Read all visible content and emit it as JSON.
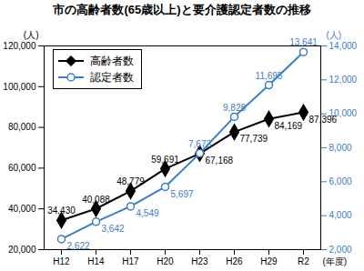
{
  "chart_data": {
    "type": "line",
    "title": "市の高齢者数(65歳以上)と要介護認定者数の推移",
    "categories": [
      "H12",
      "H14",
      "H17",
      "H20",
      "H23",
      "H26",
      "H29",
      "R2"
    ],
    "x_label": "(年度)",
    "y_label": "(人)",
    "y2_label": "(人)",
    "ylim": [
      20000,
      120000
    ],
    "yticks": [
      {
        "value": 20000,
        "label": "20,000"
      },
      {
        "value": 40000,
        "label": "40,000"
      },
      {
        "value": 60000,
        "label": "60,000"
      },
      {
        "value": 80000,
        "label": "80,000"
      },
      {
        "value": 100000,
        "label": "100,000"
      },
      {
        "value": 120000,
        "label": "120,000"
      }
    ],
    "y2lim": [
      2000,
      14000
    ],
    "y2ticks": [
      {
        "value": 2000,
        "label": "2,000"
      },
      {
        "value": 4000,
        "label": "4,000"
      },
      {
        "value": 6000,
        "label": "6,000"
      },
      {
        "value": 8000,
        "label": "8,000"
      },
      {
        "value": 10000,
        "label": "10,000"
      },
      {
        "value": 12000,
        "label": "12,000"
      },
      {
        "value": 14000,
        "label": "14,000"
      }
    ],
    "legend": "upper left",
    "data_labels": true,
    "series": [
      {
        "name": "高齢者数",
        "color": "#000000",
        "marker": "diamond",
        "values": [
          34430,
          40088,
          48779,
          59691,
          67168,
          77739,
          84169,
          87396
        ],
        "value_labels": [
          "34,430",
          "40,088",
          "48,779",
          "59,691",
          "67,168",
          "77,739",
          "84,169",
          "87,396"
        ]
      },
      {
        "name": "認定者数",
        "color": "#3b7dc4",
        "marker": "circle",
        "axis": "y2",
        "values": [
          2622,
          3642,
          4549,
          5697,
          7673,
          9828,
          11695,
          13641
        ],
        "value_labels": [
          "2,622",
          "3,642",
          "4,549",
          "5,697",
          "7,673",
          "9,828",
          "11,695",
          "13,641"
        ]
      }
    ]
  }
}
